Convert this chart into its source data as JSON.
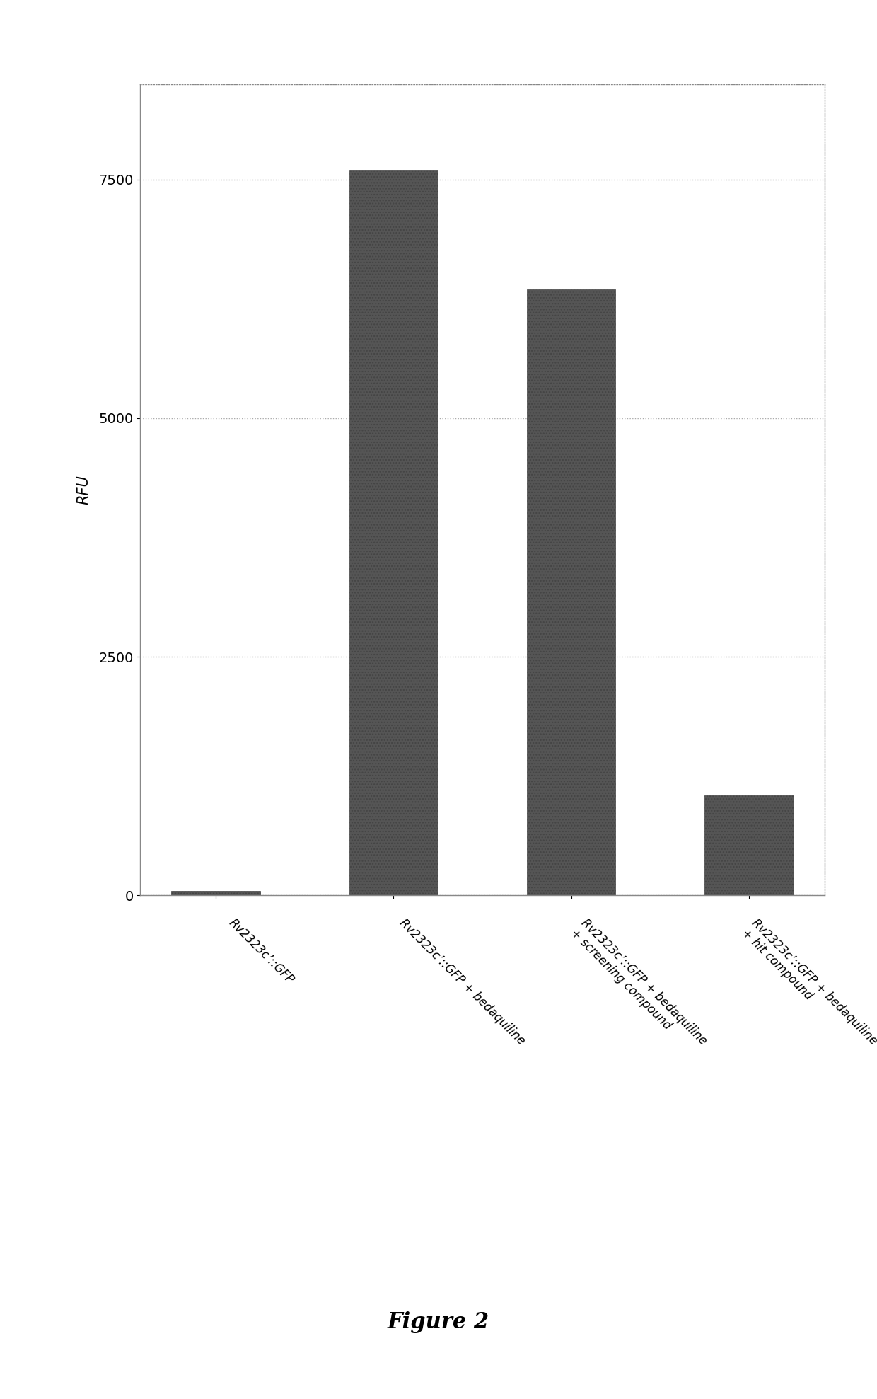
{
  "categories": [
    "Rv2323c’::GFP",
    "Rv2323c’::GFP + bedaquiline",
    "Rv2323c’::GFP + bedaquiline\n+ screening compound",
    "Rv2323c’::GFP + bedaquiline\n+ hit compound"
  ],
  "values": [
    50,
    7600,
    6350,
    1050
  ],
  "bar_color": "#555555",
  "bar_hatch": "....",
  "ylabel": "RFU",
  "ylim": [
    0,
    8500
  ],
  "yticks": [
    0,
    2500,
    5000,
    7500
  ],
  "background_color": "#ffffff",
  "grid_color": "#aaaaaa",
  "figure_caption": "Figure 2",
  "caption_fontsize": 22,
  "ytick_fontsize": 14,
  "xtick_fontsize": 12,
  "label_fontsize": 15,
  "bar_width": 0.5
}
